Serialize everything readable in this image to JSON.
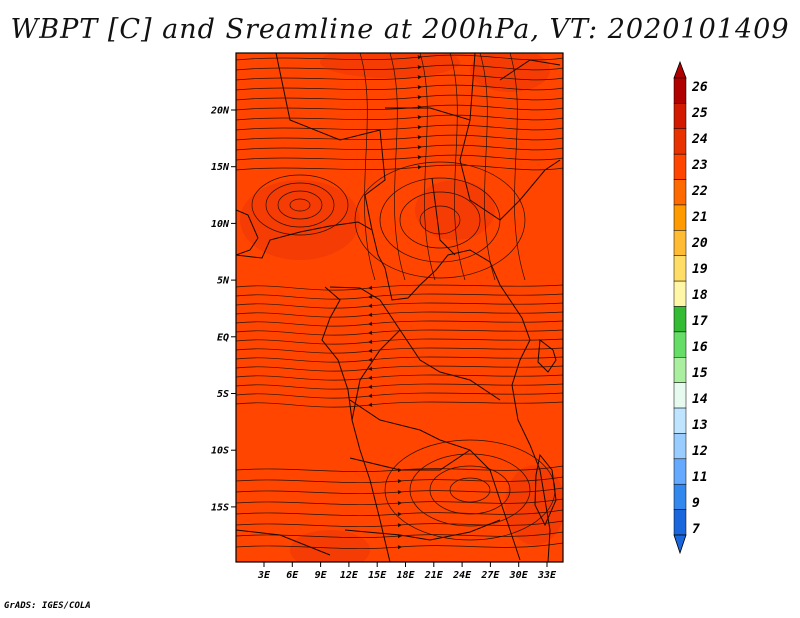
{
  "title": "WBPT [C] and Sreamline at 200hPa, VT: 2020101409",
  "footer": "GrADS: IGES/COLA",
  "map": {
    "lon_ticks": [
      "3E",
      "6E",
      "9E",
      "12E",
      "15E",
      "18E",
      "21E",
      "24E",
      "27E",
      "30E",
      "33E"
    ],
    "lat_ticks": [
      "20N",
      "15N",
      "10N",
      "5N",
      "EQ",
      "5S",
      "10S",
      "15S"
    ],
    "background_color": "#ff4500",
    "darker_patch_color": "#f23a05",
    "streamline_color": "#2a1000",
    "boundary_color": "#1a0800"
  },
  "colorbar": {
    "labels": [
      "26",
      "25",
      "24",
      "23",
      "22",
      "21",
      "20",
      "19",
      "18",
      "17",
      "16",
      "15",
      "14",
      "13",
      "12",
      "11",
      "9",
      "7"
    ],
    "colors": [
      "#b00000",
      "#d21a00",
      "#e83200",
      "#ff4500",
      "#ff6a00",
      "#ff9a00",
      "#ffbb33",
      "#ffdd66",
      "#fff6a8",
      "#33bb33",
      "#66dd66",
      "#aaeea0",
      "#e6faf0",
      "#bfe4ff",
      "#99ccff",
      "#66aaff",
      "#3388ee",
      "#1a66dd"
    ]
  }
}
